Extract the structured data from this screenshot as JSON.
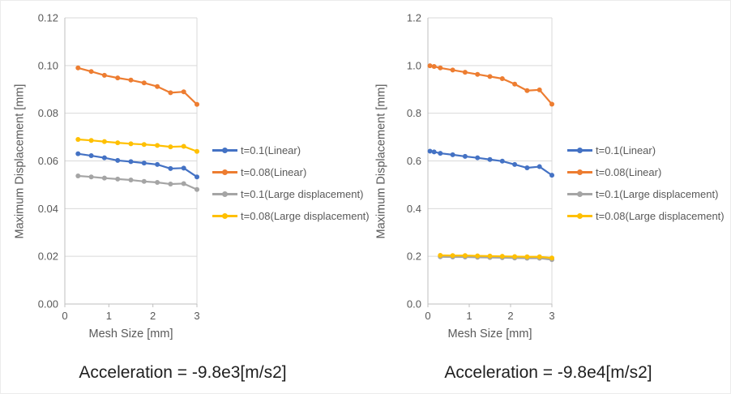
{
  "chart_data": [
    {
      "type": "line",
      "caption": "Acceleration = -9.8e3[m/s2]",
      "xlabel": "Mesh Size [mm]",
      "ylabel": "Maximum Displacement [mm]",
      "xlim": [
        0,
        3
      ],
      "ylim": [
        0,
        0.12
      ],
      "grid": "horizontal",
      "legend_position": "right",
      "x_ticks": {
        "values": [
          0,
          1,
          2,
          3
        ],
        "labels": [
          "0",
          "1",
          "2",
          "3"
        ]
      },
      "y_ticks": {
        "values": [
          0,
          0.02,
          0.04,
          0.06,
          0.08,
          0.1,
          0.12
        ],
        "labels": [
          "0.00",
          "0.02",
          "0.04",
          "0.06",
          "0.08",
          "0.10",
          "0.12"
        ]
      },
      "series": [
        {
          "name": "t=0.1(Linear)",
          "color": "#4472C4",
          "x": [
            0.3,
            0.6,
            0.9,
            1.2,
            1.5,
            1.8,
            2.1,
            2.4,
            2.7,
            3.0
          ],
          "y": [
            0.063,
            0.0622,
            0.0613,
            0.0602,
            0.0597,
            0.0591,
            0.0585,
            0.0568,
            0.057,
            0.0533
          ]
        },
        {
          "name": "t=0.08(Linear)",
          "color": "#ED7D31",
          "x": [
            0.3,
            0.6,
            0.9,
            1.2,
            1.5,
            1.8,
            2.1,
            2.4,
            2.7,
            3.0
          ],
          "y": [
            0.099,
            0.0975,
            0.0959,
            0.0948,
            0.0939,
            0.0927,
            0.0912,
            0.0886,
            0.089,
            0.0837
          ]
        },
        {
          "name": "t=0.1(Large displacement)",
          "color": "#A5A5A5",
          "x": [
            0.3,
            0.6,
            0.9,
            1.2,
            1.5,
            1.8,
            2.1,
            2.4,
            2.7,
            3.0
          ],
          "y": [
            0.0537,
            0.0533,
            0.0528,
            0.0524,
            0.052,
            0.0514,
            0.051,
            0.0503,
            0.0505,
            0.048
          ]
        },
        {
          "name": "t=0.08(Large displacement)",
          "color": "#FFC000",
          "x": [
            0.3,
            0.6,
            0.9,
            1.2,
            1.5,
            1.8,
            2.1,
            2.4,
            2.7,
            3.0
          ],
          "y": [
            0.069,
            0.0686,
            0.0681,
            0.0676,
            0.0672,
            0.0669,
            0.0665,
            0.0659,
            0.0661,
            0.064
          ]
        }
      ]
    },
    {
      "type": "line",
      "caption": "Acceleration = -9.8e4[m/s2]",
      "xlabel": "Mesh Size [mm]",
      "ylabel": "Maximum Displacement [mm]",
      "xlim": [
        0,
        3
      ],
      "ylim": [
        0,
        1.2
      ],
      "grid": "horizontal",
      "legend_position": "right",
      "x_ticks": {
        "values": [
          0,
          1,
          2,
          3
        ],
        "labels": [
          "0",
          "1",
          "2",
          "3"
        ]
      },
      "y_ticks": {
        "values": [
          0,
          0.2,
          0.4,
          0.6,
          0.8,
          1.0,
          1.2
        ],
        "labels": [
          "0.0",
          "0.2",
          "0.4",
          "0.6",
          "0.8",
          "1.0",
          "1.2"
        ]
      },
      "series": [
        {
          "name": "t=0.1(Linear)",
          "color": "#4472C4",
          "x": [
            0.05,
            0.15,
            0.3,
            0.6,
            0.9,
            1.2,
            1.5,
            1.8,
            2.1,
            2.4,
            2.7,
            3.0
          ],
          "y": [
            0.641,
            0.638,
            0.632,
            0.626,
            0.619,
            0.613,
            0.606,
            0.599,
            0.585,
            0.571,
            0.576,
            0.54
          ]
        },
        {
          "name": "t=0.08(Linear)",
          "color": "#ED7D31",
          "x": [
            0.05,
            0.15,
            0.3,
            0.6,
            0.9,
            1.2,
            1.5,
            1.8,
            2.1,
            2.4,
            2.7,
            3.0
          ],
          "y": [
            0.999,
            0.996,
            0.99,
            0.981,
            0.972,
            0.963,
            0.954,
            0.945,
            0.922,
            0.895,
            0.898,
            0.838
          ]
        },
        {
          "name": "t=0.1(Large displacement)",
          "color": "#A5A5A5",
          "x": [
            0.3,
            0.6,
            0.9,
            1.2,
            1.5,
            1.8,
            2.1,
            2.4,
            2.7,
            3.0
          ],
          "y": [
            0.198,
            0.197,
            0.197,
            0.196,
            0.195,
            0.194,
            0.193,
            0.192,
            0.192,
            0.186
          ]
        },
        {
          "name": "t=0.08(Large displacement)",
          "color": "#FFC000",
          "x": [
            0.3,
            0.6,
            0.9,
            1.2,
            1.5,
            1.8,
            2.1,
            2.4,
            2.7,
            3.0
          ],
          "y": [
            0.204,
            0.203,
            0.203,
            0.202,
            0.201,
            0.2,
            0.199,
            0.198,
            0.198,
            0.193
          ]
        }
      ]
    }
  ]
}
